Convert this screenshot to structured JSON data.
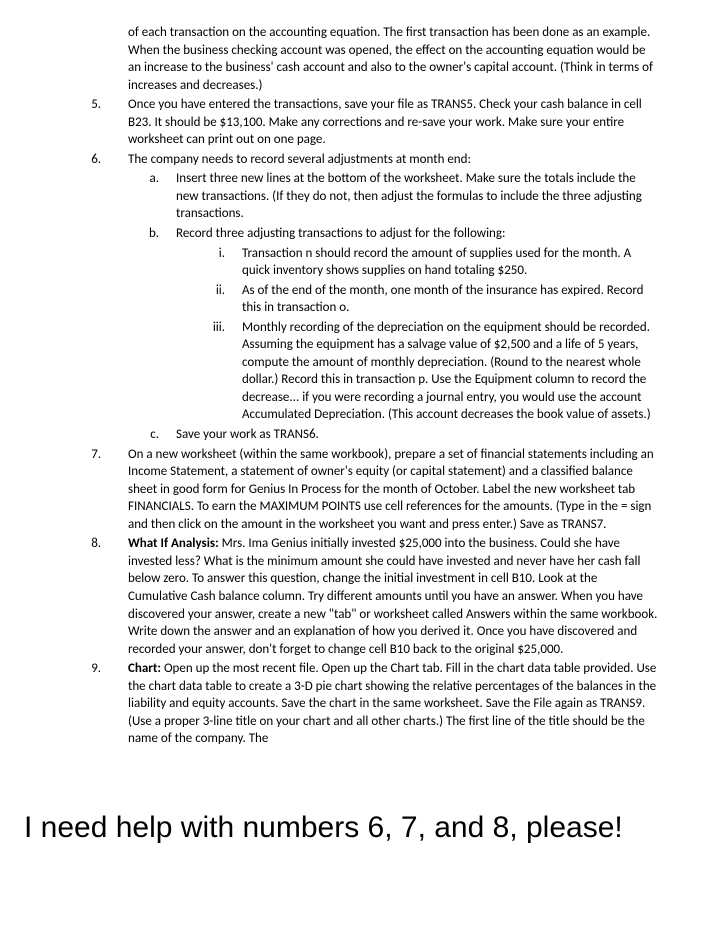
{
  "continuation": "of each transaction on the accounting equation.  The first transaction has been done as an example.  When the business checking account was opened, the effect on the accounting equation would be an increase to the business' cash account and also to the owner's capital account.  (Think in terms of increases and decreases.)",
  "items": {
    "5": "Once you have entered the transactions, save your file as TRANS5.  Check your cash balance in cell B23.  It should be $13,100.  Make any corrections and re-save your work.  Make sure your entire worksheet can print out on one page.",
    "6": {
      "lead": "The company needs to record several adjustments at month end:",
      "a": "Insert three new lines at the bottom of the worksheet. Make sure the totals include the new transactions.  (If they do not, then adjust the formulas to include the three adjusting transactions.",
      "b": {
        "lead": "Record three adjusting transactions to adjust for the following:",
        "i": "Transaction n should record the amount of supplies used for the month.  A quick inventory shows supplies on hand totaling $250.",
        "ii": "As of the end of the month, one month of the insurance has expired.  Record this in transaction o.",
        "iii": "Monthly recording of the depreciation on the equipment should be recorded.  Assuming the equipment has a salvage value of $2,500 and a life of 5 years, compute the amount of monthly depreciation.  (Round to the nearest whole dollar.)  Record this in transaction p.  Use the Equipment column to record the decrease... if you were recording a journal entry, you would use the account Accumulated Depreciation.  (This account decreases the book value of assets.)"
      },
      "c": "Save your work as TRANS6."
    },
    "7": "On a new worksheet (within the same workbook), prepare a set of financial statements including an Income Statement, a statement of owner's equity (or capital statement) and a classified balance sheet in good form for Genius In Process for the month of October.  Label the new worksheet tab FINANCIALS.  To earn the MAXIMUM POINTS use cell references for the amounts.  (Type in the = sign and then click on the amount in the worksheet you want and press enter.)  Save as TRANS7.",
    "8": {
      "bold": "What If Analysis:",
      "rest": "  Mrs. Ima Genius initially invested $25,000 into the business.  Could she have invested less?  What is the minimum amount she could have invested and never have her cash fall below zero.  To answer this question, change the initial investment in cell B10. Look at the Cumulative Cash balance column.  Try different amounts until you have an answer.  When you have discovered your answer, create a new \"tab\" or worksheet called Answers within the same workbook.  Write down the answer and an explanation of how you derived it.  Once you have discovered and recorded your answer, don't forget to change cell B10 back to the original $25,000."
    },
    "9": {
      "bold": "Chart:",
      "rest": "  Open up the most recent file.  Open up the Chart tab.  Fill in the chart data table provided.  Use the chart data table to create a 3-D pie chart showing the relative percentages of the balances in the liability and equity accounts.  Save the chart in the same worksheet.  Save the File again as TRANS9.  (Use a proper 3-line title on your chart and all other charts.)  The first line of the title should be the name of the company. The"
    }
  },
  "question": "I need help with numbers 6, 7, and 8, please!"
}
